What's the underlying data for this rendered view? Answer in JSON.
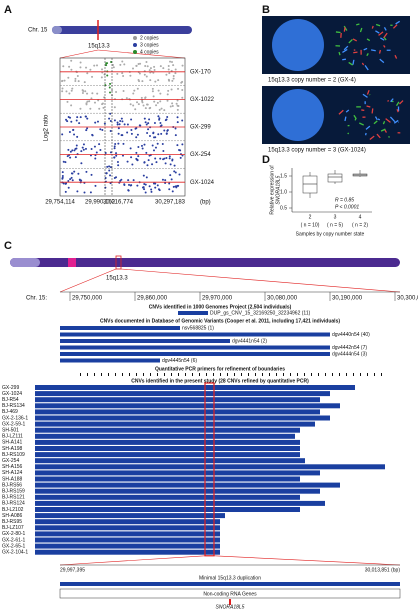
{
  "panel_a": {
    "letter": "A",
    "chromosome": "Chr. 15",
    "band": "15q13.3",
    "legend": [
      "2 copies",
      "3 copies",
      "4 copies"
    ],
    "y_label": "Log2 ratio",
    "samples": [
      "GX-170",
      "GX-1022",
      "GX-299",
      "GX-254",
      "GX-1024"
    ],
    "x_ticks": [
      "29,754,114",
      "29,990,162",
      "30,016,774",
      "30,297,183",
      "(bp)"
    ]
  },
  "panel_b": {
    "letter": "B",
    "captions": [
      "15q13.3 copy number = 2 (GX-4)",
      "15q13.3 copy number = 3 (GX-1024)"
    ]
  },
  "panel_d": {
    "letter": "D",
    "y_label": "Relative expression of",
    "gene": "SNORA18L5",
    "y_ticks": [
      "0.5",
      "1.0",
      "1.5"
    ],
    "categories": [
      "2",
      "3",
      "4"
    ],
    "counts": [
      "( n = 10)",
      "( n = 5)",
      "( n = 2)"
    ],
    "r": "R = 0.85",
    "p": "P < 0.0001",
    "x_label": "Samples by copy number state"
  },
  "panel_c": {
    "letter": "C",
    "chromosome": "Chr. 15:",
    "band": "15q13.3",
    "ticks": [
      "29,750,000",
      "29,860,000",
      "29,970,000",
      "30,080,000",
      "30,190,000",
      "30,300,000 (bp)"
    ],
    "title_1000g": "CNVs identified in 1000 Genomes Project (2,504 individuals)",
    "cnv_1000g": "DUP_gs_CNV_15_32169250_32234962 (11)",
    "title_dgv": "CNVs documented in Database of Genomic Variants (Cooper et al. 2011, including 17,421 individuals)",
    "dgv": [
      "nsv568825 (1)",
      "dgv4440n54 (40)",
      "dgv4441n54 (2)",
      "dgv4442n54 (7)",
      "dgv4444n54 (3)",
      "dgv4445n54 (6)"
    ],
    "title_primers": "Quantitative PCR primers for refinement of boundaries",
    "title_present": "CNVs identified in the present study (28 CNVs refined by quantitative PCR)",
    "samples": [
      "GX-299",
      "GX-1024",
      "BJ-R54",
      "BJ-RS134",
      "BJ-469",
      "GX-2-136-1",
      "GX-2-59-1",
      "SH-501",
      "BJ-LZ111",
      "SH-A141",
      "SH-A198",
      "BJ-RS109",
      "GX-254",
      "SH-A156",
      "SH-A124",
      "SH-A188",
      "BJ-RS56",
      "BJ-RS159",
      "BJ-RS121",
      "BJ-RS124",
      "BJ-L2102",
      "SH-A086",
      "BJ-RS95",
      "BJ-LZ107",
      "GX-2-80-1",
      "GX-2-61-1",
      "GX-2-65-1",
      "GX-2-104-1"
    ],
    "left_coord": "29,997,395",
    "right_coord": "30,013,851 (bp)",
    "minimal": "Minimal 15q13.3 duplication",
    "genes_title": "Non-coding RNA Genes",
    "gene": "SNORA18L5"
  }
}
